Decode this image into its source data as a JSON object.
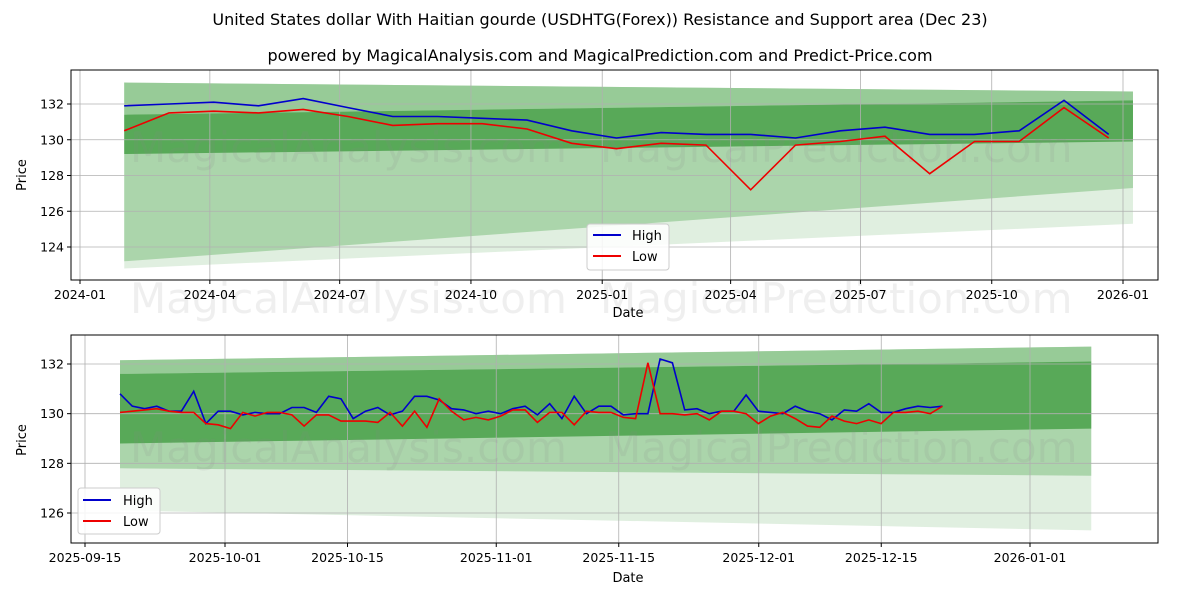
{
  "header": {
    "title": "United States dollar With Haitian gourde (USDHTG(Forex)) Resistance and Support area (Dec 23)",
    "subtitle": "powered by MagicalAnalysis.com and MagicalPrediction.com and Predict-Price.com"
  },
  "watermarks": [
    "MagicalAnalysis.com",
    "MagicalPrediction.com"
  ],
  "colors": {
    "high": "#0000cc",
    "low": "#ee0000",
    "band_dark": "#3c9a3c",
    "band_mid": "#7fbf7f",
    "band_light": "#d5ead5",
    "grid": "#b0b0b0"
  },
  "chart_data": [
    {
      "type": "line",
      "title": "Full history",
      "xlabel": "Date",
      "ylabel": "Price",
      "x_ticks": [
        "2024-01",
        "2024-04",
        "2024-07",
        "2024-10",
        "2025-01",
        "2025-04",
        "2025-07",
        "2025-10",
        "2026-01"
      ],
      "y_ticks": [
        124,
        126,
        128,
        130,
        132
      ],
      "ylim": [
        122.5,
        133.8
      ],
      "grid": true,
      "legend": {
        "position": "lower center",
        "entries": [
          "High",
          "Low"
        ]
      },
      "x": [
        "2024-02",
        "2024-03",
        "2024-04",
        "2024-05",
        "2024-06",
        "2024-07",
        "2024-08",
        "2024-09",
        "2024-10",
        "2024-11",
        "2024-12",
        "2025-01",
        "2025-02",
        "2025-03",
        "2025-04",
        "2025-05",
        "2025-06",
        "2025-07",
        "2025-08",
        "2025-09",
        "2025-10",
        "2025-11",
        "2025-12"
      ],
      "series": [
        {
          "name": "High",
          "values": [
            131.9,
            132.0,
            132.1,
            131.9,
            132.3,
            131.8,
            131.3,
            131.3,
            131.2,
            131.1,
            130.5,
            130.1,
            130.4,
            130.3,
            130.3,
            130.1,
            130.5,
            130.7,
            130.3,
            130.3,
            130.5,
            132.2,
            130.3
          ]
        },
        {
          "name": "Low",
          "values": [
            130.5,
            131.5,
            131.6,
            131.5,
            131.7,
            131.3,
            130.8,
            130.9,
            130.9,
            130.6,
            129.8,
            129.5,
            129.8,
            129.7,
            127.2,
            129.7,
            129.9,
            130.2,
            128.1,
            129.9,
            129.9,
            131.8,
            130.1
          ]
        }
      ],
      "bands": {
        "x_start": "2024-02-01",
        "x_end": "2026-01-08",
        "resistance_outer": [
          133.2,
          132.7
        ],
        "resistance_inner": [
          131.4,
          132.2
        ],
        "support_inner": [
          129.2,
          129.9
        ],
        "support_outer": [
          123.2,
          127.3
        ],
        "support_lowest": [
          122.8,
          125.3
        ]
      }
    },
    {
      "type": "line",
      "title": "Recent (zoomed)",
      "xlabel": "Date",
      "ylabel": "Price",
      "x_ticks": [
        "2025-09-15",
        "2025-10-01",
        "2025-10-15",
        "2025-11-01",
        "2025-11-15",
        "2025-12-01",
        "2025-12-15",
        "2026-01-01"
      ],
      "y_ticks": [
        126,
        128,
        130,
        132
      ],
      "ylim": [
        124.9,
        133.1
      ],
      "grid": true,
      "legend": {
        "position": "lower left",
        "entries": [
          "High",
          "Low"
        ]
      },
      "x": [
        "09-19",
        "09-22",
        "09-23",
        "09-24",
        "09-25",
        "09-26",
        "09-27",
        "09-29",
        "09-30",
        "10-01",
        "10-02",
        "10-03",
        "10-06",
        "10-07",
        "10-08",
        "10-09",
        "10-10",
        "10-13",
        "10-14",
        "10-15",
        "10-16",
        "10-17",
        "10-20",
        "10-21",
        "10-22",
        "10-23",
        "10-24",
        "10-27",
        "10-28",
        "10-29",
        "10-30",
        "10-31",
        "11-03",
        "11-04",
        "11-05",
        "11-06",
        "11-07",
        "11-10",
        "11-11",
        "11-12",
        "11-13",
        "11-14",
        "11-17",
        "11-18",
        "11-19",
        "11-20",
        "11-21",
        "11-24",
        "11-25",
        "11-26",
        "11-27",
        "11-28",
        "12-01",
        "12-02",
        "12-03",
        "12-04",
        "12-05",
        "12-08",
        "12-09",
        "12-10",
        "12-11",
        "12-12",
        "12-15",
        "12-16",
        "12-17",
        "12-18",
        "12-19",
        "12-22"
      ],
      "series": [
        {
          "name": "High",
          "values": [
            130.8,
            130.3,
            130.2,
            130.3,
            130.1,
            130.1,
            130.9,
            129.6,
            130.1,
            130.1,
            129.95,
            130.05,
            130.0,
            130.0,
            130.25,
            130.25,
            130.05,
            130.7,
            130.6,
            129.8,
            130.1,
            130.25,
            129.95,
            130.1,
            130.7,
            130.7,
            130.55,
            130.2,
            130.15,
            130.0,
            130.1,
            130.0,
            130.2,
            130.3,
            129.95,
            130.4,
            129.8,
            130.7,
            130.0,
            130.3,
            130.3,
            129.95,
            130.0,
            130.0,
            132.2,
            132.05,
            130.15,
            130.2,
            130.0,
            130.1,
            130.1,
            130.75,
            130.1,
            130.05,
            130.0,
            130.3,
            130.1,
            130.0,
            129.75,
            130.15,
            130.1,
            130.4,
            130.05,
            130.05,
            130.2,
            130.3,
            130.25,
            130.3
          ]
        },
        {
          "name": "Low",
          "values": [
            130.05,
            130.1,
            130.15,
            130.2,
            130.1,
            130.05,
            130.05,
            129.6,
            129.55,
            129.4,
            130.05,
            129.9,
            130.05,
            130.05,
            129.95,
            129.5,
            129.95,
            129.95,
            129.7,
            129.7,
            129.7,
            129.65,
            130.05,
            129.5,
            130.1,
            129.45,
            130.6,
            130.1,
            129.75,
            129.85,
            129.75,
            129.9,
            130.15,
            130.15,
            129.65,
            130.05,
            130.05,
            129.55,
            130.1,
            130.05,
            130.05,
            129.85,
            129.8,
            132.05,
            130.0,
            130.0,
            129.95,
            130.0,
            129.75,
            130.1,
            130.1,
            130.0,
            129.6,
            129.9,
            130.05,
            129.8,
            129.5,
            129.45,
            129.9,
            129.7,
            129.6,
            129.75,
            129.6,
            130.05,
            130.05,
            130.1,
            130.0,
            130.3
          ]
        }
      ],
      "bands": {
        "x_start": "2025-09-19",
        "x_end": "2026-01-08",
        "resistance_outer": [
          132.15,
          132.7
        ],
        "resistance_inner": [
          131.6,
          132.1
        ],
        "support_inner": [
          128.8,
          129.4
        ],
        "support_outer": [
          127.8,
          127.5
        ],
        "support_lowest": [
          126.1,
          125.3
        ]
      }
    }
  ]
}
